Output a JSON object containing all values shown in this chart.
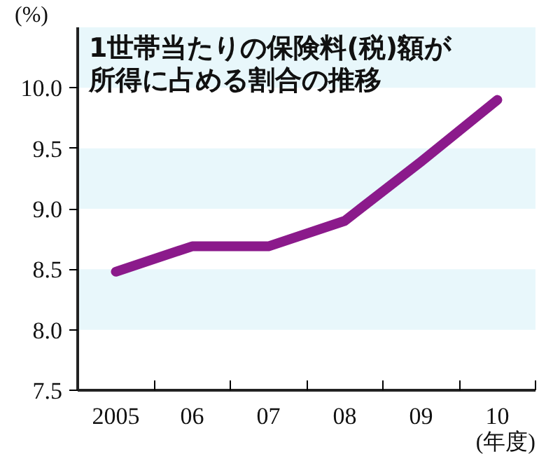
{
  "chart_data": {
    "type": "line",
    "title": "1世帯当たりの保険料(税)額が所得に占める割合の推移",
    "categories": [
      "2005",
      "06",
      "07",
      "08",
      "09",
      "10"
    ],
    "series": [
      {
        "color": "#8b1a8b",
        "values": [
          8.48,
          8.69,
          8.69,
          8.9,
          9.39,
          9.9
        ]
      }
    ],
    "ylim": [
      7.5,
      10.5
    ],
    "yticks": [
      {
        "value": 7.5,
        "label": "7.5"
      },
      {
        "value": 8.0,
        "label": "8.0"
      },
      {
        "value": 8.5,
        "label": "8.5"
      },
      {
        "value": 9.0,
        "label": "9.0"
      },
      {
        "value": 9.5,
        "label": "9.5"
      },
      {
        "value": 10.0,
        "label": "10.0"
      }
    ],
    "bands": [
      {
        "axis": "y",
        "from": 8.0,
        "to": 8.5,
        "color": "#e8f7fb"
      },
      {
        "axis": "y",
        "from": 9.0,
        "to": 9.5,
        "color": "#e8f7fb"
      },
      {
        "axis": "y",
        "from": 10.0,
        "to": 10.5,
        "color": "#e8f7fb"
      }
    ],
    "annotations": [
      "(%)",
      "(年度)"
    ],
    "grid": false,
    "marker": "none",
    "line_style": "solid"
  }
}
